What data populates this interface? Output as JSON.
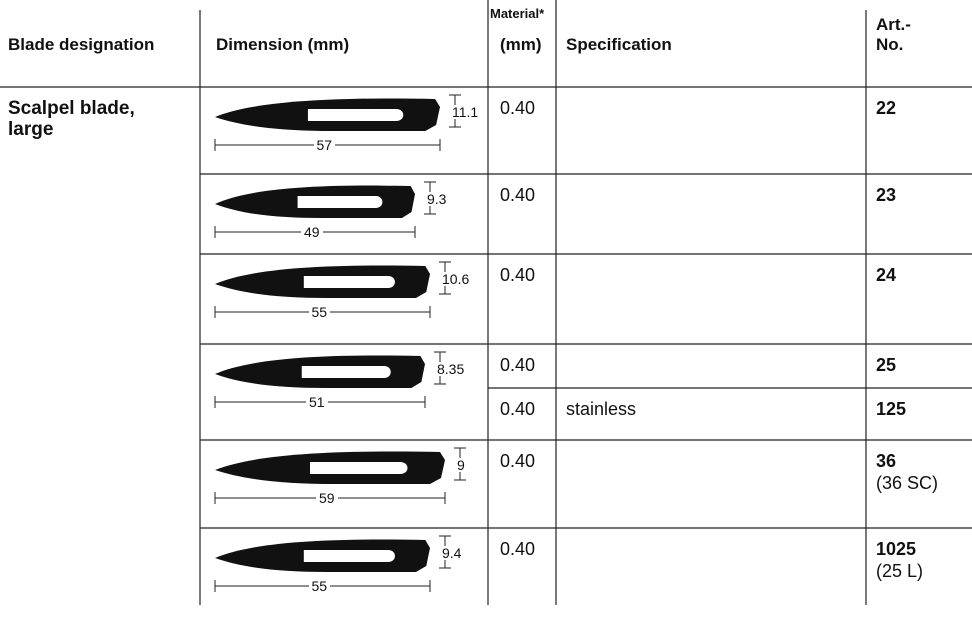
{
  "header": {
    "designation": "Blade designation",
    "dimension": "Dimension (mm)",
    "material": [
      "Material*",
      "(mm)"
    ],
    "specification": "Specification",
    "art": [
      "Art.-",
      "No."
    ]
  },
  "designation": [
    "Scalpel blade,",
    "large"
  ],
  "rows": [
    {
      "length": "57",
      "height": "11.1",
      "variants": [
        {
          "material": "0.40",
          "art": "22"
        }
      ]
    },
    {
      "length": "49",
      "height": "9.3",
      "variants": [
        {
          "material": "0.40",
          "art": "23"
        }
      ]
    },
    {
      "length": "55",
      "height": "10.6",
      "variants": [
        {
          "material": "0.40",
          "art": "24"
        }
      ]
    },
    {
      "length": "51",
      "height": "8.35",
      "variants": [
        {
          "material": "0.40",
          "art": "25"
        },
        {
          "material": "0.40",
          "specification": "stainless",
          "art": "125"
        }
      ]
    },
    {
      "length": "59",
      "height": "9",
      "variants": [
        {
          "material": "0.40",
          "art": "36",
          "alt": "(36 SC)"
        }
      ]
    },
    {
      "length": "55",
      "height": "9.4",
      "variants": [
        {
          "material": "0.40",
          "art": "1025",
          "alt": "(25 L)"
        }
      ]
    }
  ]
}
